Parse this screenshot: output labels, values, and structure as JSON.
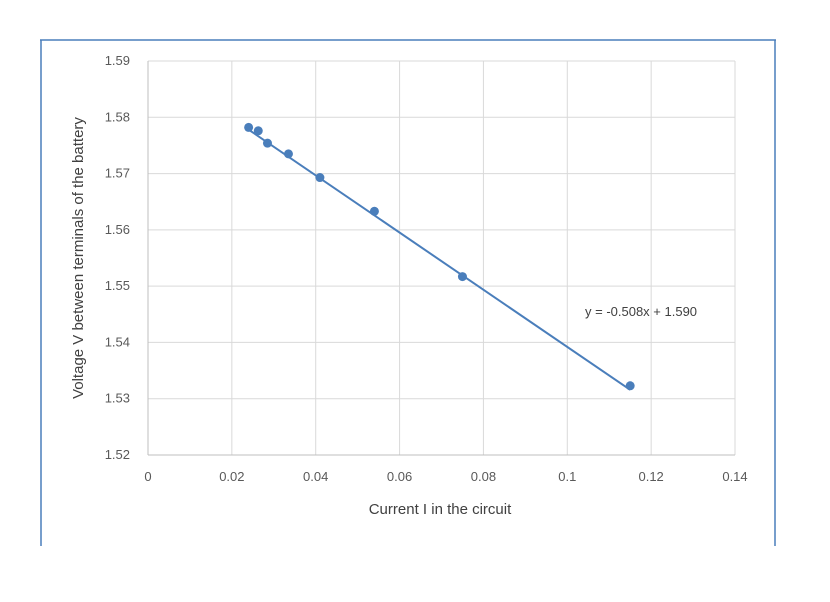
{
  "chart_data": {
    "type": "scatter",
    "xlabel": "Current I in the circuit",
    "ylabel": "Voltage V between terminals of the battery",
    "xlim": [
      0,
      0.14
    ],
    "ylim": [
      1.52,
      1.59
    ],
    "x_ticks": [
      0,
      0.02,
      0.04,
      0.06,
      0.08,
      0.1,
      0.12,
      0.14
    ],
    "x_tick_labels": [
      "0",
      "0.02",
      "0.04",
      "0.06",
      "0.08",
      "0.1",
      "0.12",
      "0.14"
    ],
    "y_ticks": [
      1.52,
      1.53,
      1.54,
      1.55,
      1.56,
      1.57,
      1.58,
      1.59
    ],
    "y_tick_labels": [
      "1.52",
      "1.53",
      "1.54",
      "1.55",
      "1.56",
      "1.57",
      "1.58",
      "1.59"
    ],
    "grid": true,
    "legend": "none",
    "marker_color": "#4a7ebb",
    "line_color": "#4a7ebb",
    "series": [
      {
        "x": [
          0.024,
          0.0263,
          0.0285,
          0.0335,
          0.041,
          0.054,
          0.075,
          0.115
        ],
        "y": [
          1.5782,
          1.5776,
          1.5754,
          1.5735,
          1.5693,
          1.5633,
          1.5517,
          1.5323
        ]
      }
    ],
    "trendline": {
      "type": "linear",
      "slope": -0.508,
      "intercept": 1.59,
      "x_range": [
        0.024,
        0.115
      ],
      "equation_label": "y = -0.508x + 1.590"
    }
  }
}
